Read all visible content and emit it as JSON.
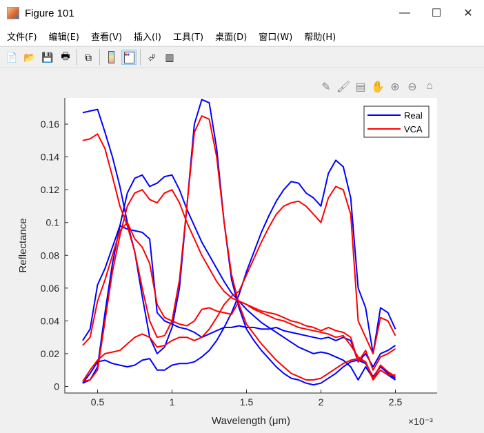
{
  "window": {
    "title": "Figure 101",
    "minimize": "—",
    "maximize": "☐",
    "close": "✕"
  },
  "menu": [
    "文件(F)",
    "编辑(E)",
    "查看(V)",
    "插入(I)",
    "工具(T)",
    "桌面(D)",
    "窗口(W)",
    "帮助(H)"
  ],
  "dock_icon": "↘",
  "toolbar": [
    "new-figure-icon",
    "open-file-icon",
    "save-icon",
    "print-icon",
    "link-plot-icon",
    "colorbar-icon",
    "legend-icon",
    "pointer-icon",
    "property-inspector-icon"
  ],
  "axes_toolbar": [
    "brush-export-icon",
    "brush-icon",
    "data-tips-icon",
    "pan-icon",
    "zoom-in-icon",
    "zoom-out-icon",
    "home-icon"
  ],
  "colors": {
    "Real": "#0000ff",
    "VCA": "#ff0000"
  },
  "chart_data": {
    "type": "line",
    "xlabel": "Wavelength (μm)",
    "ylabel": "Reflectance",
    "x_exponent": "×10⁻³",
    "xlim": [
      0.28,
      2.78
    ],
    "ylim": [
      -0.004,
      0.176
    ],
    "xticks": [
      "0.5",
      "1",
      "1.5",
      "2",
      "2.5"
    ],
    "yticks": [
      "0",
      "0.02",
      "0.04",
      "0.06",
      "0.08",
      "0.1",
      "0.12",
      "0.14",
      "0.16"
    ],
    "legend": {
      "position": "top-right",
      "entries": [
        "Real",
        "VCA"
      ]
    },
    "grid": false,
    "x": [
      0.4,
      0.45,
      0.5,
      0.55,
      0.6,
      0.65,
      0.7,
      0.75,
      0.8,
      0.85,
      0.9,
      0.95,
      1.0,
      1.05,
      1.1,
      1.15,
      1.2,
      1.25,
      1.3,
      1.35,
      1.4,
      1.45,
      1.5,
      1.55,
      1.6,
      1.65,
      1.7,
      1.75,
      1.8,
      1.85,
      1.9,
      1.95,
      2.0,
      2.05,
      2.1,
      2.15,
      2.2,
      2.25,
      2.3,
      2.35,
      2.4,
      2.45,
      2.5
    ],
    "series": [
      {
        "name": "Real",
        "values": [
          0.167,
          0.168,
          0.169,
          0.155,
          0.14,
          0.122,
          0.1,
          0.082,
          0.055,
          0.03,
          0.02,
          0.024,
          0.036,
          0.06,
          0.11,
          0.16,
          0.175,
          0.173,
          0.145,
          0.1,
          0.065,
          0.048,
          0.035,
          0.028,
          0.022,
          0.017,
          0.012,
          0.008,
          0.005,
          0.004,
          0.002,
          0.001,
          0.002,
          0.005,
          0.008,
          0.012,
          0.015,
          0.016,
          0.014,
          0.006,
          0.012,
          0.008,
          0.005
        ]
      },
      {
        "name": "Real",
        "values": [
          0.002,
          0.004,
          0.012,
          0.045,
          0.075,
          0.098,
          0.118,
          0.127,
          0.129,
          0.122,
          0.124,
          0.128,
          0.129,
          0.12,
          0.108,
          0.098,
          0.088,
          0.08,
          0.072,
          0.064,
          0.057,
          0.052,
          0.047,
          0.043,
          0.039,
          0.036,
          0.033,
          0.03,
          0.027,
          0.024,
          0.022,
          0.02,
          0.021,
          0.02,
          0.018,
          0.016,
          0.012,
          0.004,
          0.012,
          0.005,
          0.01,
          0.007,
          0.004
        ]
      },
      {
        "name": "Real",
        "values": [
          0.028,
          0.035,
          0.062,
          0.072,
          0.085,
          0.098,
          0.096,
          0.095,
          0.094,
          0.09,
          0.045,
          0.04,
          0.038,
          0.036,
          0.035,
          0.033,
          0.03,
          0.032,
          0.034,
          0.036,
          0.036,
          0.037,
          0.036,
          0.036,
          0.035,
          0.035,
          0.036,
          0.034,
          0.033,
          0.032,
          0.031,
          0.03,
          0.029,
          0.03,
          0.028,
          0.03,
          0.028,
          0.015,
          0.02,
          0.012,
          0.02,
          0.022,
          0.025
        ]
      },
      {
        "name": "Real",
        "values": [
          0.002,
          0.008,
          0.015,
          0.016,
          0.014,
          0.013,
          0.012,
          0.013,
          0.016,
          0.017,
          0.01,
          0.01,
          0.013,
          0.014,
          0.014,
          0.015,
          0.018,
          0.022,
          0.028,
          0.036,
          0.045,
          0.056,
          0.07,
          0.082,
          0.094,
          0.104,
          0.113,
          0.12,
          0.125,
          0.124,
          0.118,
          0.115,
          0.11,
          0.13,
          0.138,
          0.134,
          0.115,
          0.06,
          0.048,
          0.02,
          0.048,
          0.045,
          0.035
        ]
      },
      {
        "name": "VCA",
        "values": [
          0.15,
          0.151,
          0.154,
          0.145,
          0.128,
          0.11,
          0.098,
          0.082,
          0.06,
          0.04,
          0.03,
          0.031,
          0.04,
          0.065,
          0.11,
          0.155,
          0.165,
          0.163,
          0.14,
          0.1,
          0.068,
          0.05,
          0.038,
          0.032,
          0.026,
          0.021,
          0.016,
          0.012,
          0.008,
          0.006,
          0.004,
          0.004,
          0.005,
          0.008,
          0.011,
          0.014,
          0.016,
          0.017,
          0.015,
          0.005,
          0.013,
          0.009,
          0.006
        ]
      },
      {
        "name": "VCA",
        "values": [
          0.003,
          0.004,
          0.01,
          0.04,
          0.07,
          0.092,
          0.11,
          0.118,
          0.12,
          0.114,
          0.112,
          0.118,
          0.12,
          0.112,
          0.1,
          0.09,
          0.08,
          0.072,
          0.064,
          0.058,
          0.054,
          0.052,
          0.05,
          0.047,
          0.045,
          0.043,
          0.041,
          0.04,
          0.038,
          0.036,
          0.035,
          0.034,
          0.033,
          0.032,
          0.03,
          0.031,
          0.025,
          0.018,
          0.015,
          0.004,
          0.01,
          0.007,
          0.007
        ]
      },
      {
        "name": "VCA",
        "values": [
          0.025,
          0.03,
          0.052,
          0.065,
          0.08,
          0.095,
          0.1,
          0.09,
          0.085,
          0.075,
          0.05,
          0.042,
          0.04,
          0.038,
          0.037,
          0.04,
          0.047,
          0.048,
          0.046,
          0.045,
          0.044,
          0.052,
          0.05,
          0.048,
          0.046,
          0.045,
          0.044,
          0.042,
          0.04,
          0.039,
          0.037,
          0.036,
          0.034,
          0.036,
          0.034,
          0.033,
          0.03,
          0.015,
          0.022,
          0.01,
          0.018,
          0.02,
          0.023
        ]
      },
      {
        "name": "VCA",
        "values": [
          0.003,
          0.01,
          0.016,
          0.02,
          0.021,
          0.022,
          0.026,
          0.03,
          0.032,
          0.03,
          0.024,
          0.025,
          0.028,
          0.03,
          0.03,
          0.028,
          0.03,
          0.035,
          0.042,
          0.05,
          0.055,
          0.058,
          0.068,
          0.078,
          0.088,
          0.097,
          0.105,
          0.11,
          0.112,
          0.113,
          0.11,
          0.105,
          0.1,
          0.115,
          0.122,
          0.12,
          0.105,
          0.04,
          0.03,
          0.02,
          0.042,
          0.04,
          0.031
        ]
      }
    ]
  }
}
